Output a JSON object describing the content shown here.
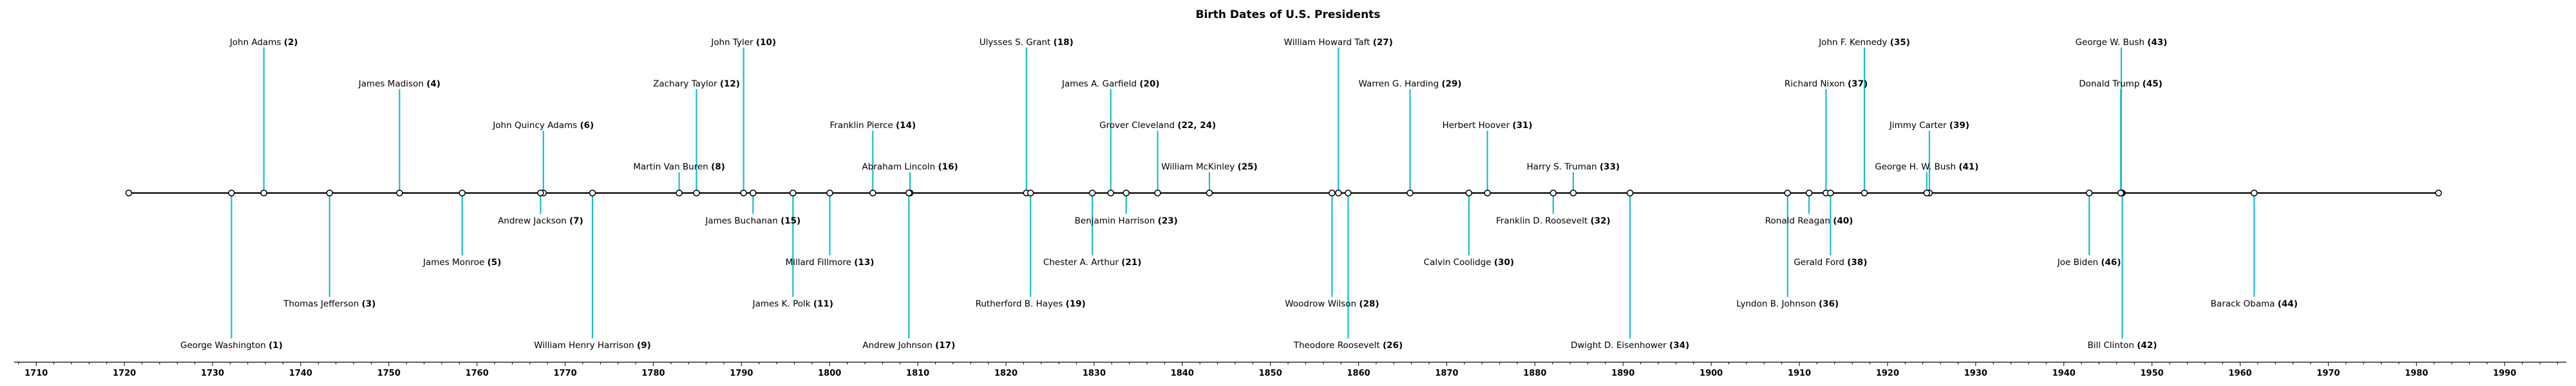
{
  "chart_data": {
    "type": "timeline",
    "title": "Birth Dates of U.S.  Presidents",
    "xlim": [
      1707.5,
      1997
    ],
    "x_ticks": [
      1710,
      1720,
      1730,
      1740,
      1750,
      1760,
      1770,
      1780,
      1790,
      1800,
      1810,
      1820,
      1830,
      1840,
      1850,
      1860,
      1870,
      1880,
      1890,
      1900,
      1910,
      1920,
      1930,
      1940,
      1950,
      1960,
      1970,
      1980,
      1990
    ],
    "line_range": [
      1720.5,
      1982.5
    ],
    "grid": false,
    "colors": {
      "stem": "#17becf",
      "line": "#000000",
      "marker_fill": "#ffffff",
      "marker_edge": "#000000"
    },
    "events": [
      {
        "name": "George Washington",
        "num": "(1)",
        "year": 1732.15,
        "level": -7
      },
      {
        "name": "John Adams",
        "num": "(2)",
        "year": 1735.82,
        "level": 7
      },
      {
        "name": "Thomas Jefferson",
        "num": "(3)",
        "year": 1743.28,
        "level": -5
      },
      {
        "name": "James Madison",
        "num": "(4)",
        "year": 1751.21,
        "level": 5
      },
      {
        "name": "James Monroe",
        "num": "(5)",
        "year": 1758.32,
        "level": -3
      },
      {
        "name": "John Quincy Adams",
        "num": "(6)",
        "year": 1767.53,
        "level": 3
      },
      {
        "name": "Andrew Jackson",
        "num": "(7)",
        "year": 1767.21,
        "level": -1
      },
      {
        "name": "Martin Van Buren",
        "num": "(8)",
        "year": 1782.93,
        "level": 1
      },
      {
        "name": "William Henry Harrison",
        "num": "(9)",
        "year": 1773.1,
        "level": -7
      },
      {
        "name": "John Tyler",
        "num": "(10)",
        "year": 1790.24,
        "level": 7
      },
      {
        "name": "James K. Polk",
        "num": "(11)",
        "year": 1795.84,
        "level": -5
      },
      {
        "name": "Zachary Taylor",
        "num": "(12)",
        "year": 1784.9,
        "level": 5
      },
      {
        "name": "Millard Fillmore",
        "num": "(13)",
        "year": 1800.02,
        "level": -3
      },
      {
        "name": "Franklin Pierce",
        "num": "(14)",
        "year": 1804.9,
        "level": 3
      },
      {
        "name": "James Buchanan",
        "num": "(15)",
        "year": 1791.31,
        "level": -1
      },
      {
        "name": "Abraham Lincoln",
        "num": "(16)",
        "year": 1809.12,
        "level": 1
      },
      {
        "name": "Andrew Johnson",
        "num": "(17)",
        "year": 1808.99,
        "level": -7
      },
      {
        "name": "Ulysses S. Grant",
        "num": "(18)",
        "year": 1822.32,
        "level": 7
      },
      {
        "name": "Rutherford B. Hayes",
        "num": "(19)",
        "year": 1822.79,
        "level": -5
      },
      {
        "name": "James A. Garfield",
        "num": "(20)",
        "year": 1831.89,
        "level": 5
      },
      {
        "name": "Chester A. Arthur",
        "num": "(21)",
        "year": 1829.8,
        "level": -3
      },
      {
        "name": "Grover Cleveland",
        "num": "(22, 24)",
        "year": 1837.21,
        "level": 3
      },
      {
        "name": "Benjamin Harrison",
        "num": "(23)",
        "year": 1833.64,
        "level": -1
      },
      {
        "name": "William McKinley",
        "num": "(25)",
        "year": 1843.08,
        "level": 1
      },
      {
        "name": "Theodore Roosevelt",
        "num": "(26)",
        "year": 1858.82,
        "level": -7
      },
      {
        "name": "William Howard Taft",
        "num": "(27)",
        "year": 1857.71,
        "level": 7
      },
      {
        "name": "Woodrow Wilson",
        "num": "(28)",
        "year": 1856.99,
        "level": -5
      },
      {
        "name": "Warren G. Harding",
        "num": "(29)",
        "year": 1865.84,
        "level": 5
      },
      {
        "name": "Calvin Coolidge",
        "num": "(30)",
        "year": 1872.51,
        "level": -3
      },
      {
        "name": "Herbert Hoover",
        "num": "(31)",
        "year": 1874.61,
        "level": 3
      },
      {
        "name": "Franklin D. Roosevelt",
        "num": "(32)",
        "year": 1882.08,
        "level": -1
      },
      {
        "name": "Harry S. Truman",
        "num": "(33)",
        "year": 1884.35,
        "level": 1
      },
      {
        "name": "Dwight D. Eisenhower",
        "num": "(34)",
        "year": 1890.79,
        "level": -7
      },
      {
        "name": "John F. Kennedy",
        "num": "(35)",
        "year": 1917.38,
        "level": 7
      },
      {
        "name": "Lyndon B. Johnson",
        "num": "(36)",
        "year": 1908.66,
        "level": -5
      },
      {
        "name": "Richard Nixon",
        "num": "(37)",
        "year": 1913.03,
        "level": 5
      },
      {
        "name": "Gerald Ford",
        "num": "(38)",
        "year": 1913.53,
        "level": -3
      },
      {
        "name": "Jimmy Carter",
        "num": "(39)",
        "year": 1924.75,
        "level": 3
      },
      {
        "name": "Ronald Reagan",
        "num": "(40)",
        "year": 1911.1,
        "level": -1
      },
      {
        "name": "George H. W. Bush",
        "num": "(41)",
        "year": 1924.45,
        "level": 1
      },
      {
        "name": "Bill Clinton",
        "num": "(42)",
        "year": 1946.63,
        "level": -7
      },
      {
        "name": "George W. Bush",
        "num": "(43)",
        "year": 1946.52,
        "level": 7
      },
      {
        "name": "Barack Obama",
        "num": "(44)",
        "year": 1961.59,
        "level": -5
      },
      {
        "name": "Donald Trump",
        "num": "(45)",
        "year": 1946.45,
        "level": 5
      },
      {
        "name": "Joe Biden",
        "num": "(46)",
        "year": 1942.88,
        "level": -3
      }
    ]
  }
}
